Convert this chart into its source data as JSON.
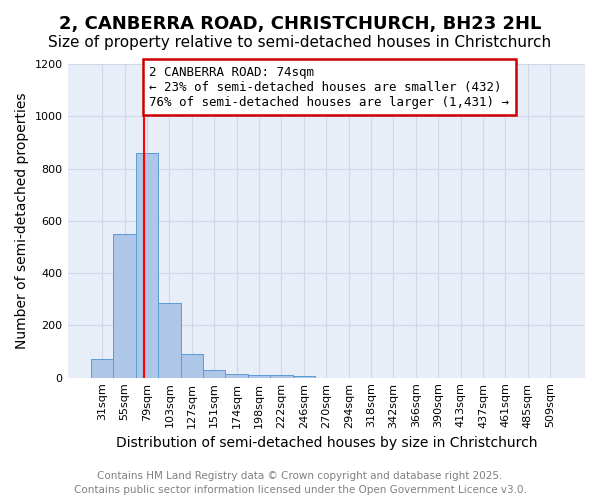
{
  "title": "2, CANBERRA ROAD, CHRISTCHURCH, BH23 2HL",
  "subtitle": "Size of property relative to semi-detached houses in Christchurch",
  "xlabel": "Distribution of semi-detached houses by size in Christchurch",
  "ylabel": "Number of semi-detached properties",
  "bin_labels": [
    "31sqm",
    "55sqm",
    "79sqm",
    "103sqm",
    "127sqm",
    "151sqm",
    "174sqm",
    "198sqm",
    "222sqm",
    "246sqm",
    "270sqm",
    "294sqm",
    "318sqm",
    "342sqm",
    "366sqm",
    "390sqm",
    "413sqm",
    "437sqm",
    "461sqm",
    "485sqm",
    "509sqm"
  ],
  "bar_values": [
    70,
    550,
    860,
    285,
    90,
    30,
    15,
    10,
    10,
    5,
    0,
    0,
    0,
    0,
    0,
    0,
    0,
    0,
    0,
    0,
    0
  ],
  "bar_color": "#aec6e8",
  "bar_edge_color": "#5b9bd5",
  "red_line_x": 1.85,
  "annotation_text": "2 CANBERRA ROAD: 74sqm\n← 23% of semi-detached houses are smaller (432)\n76% of semi-detached houses are larger (1,431) →",
  "annotation_box_color": "#ffffff",
  "annotation_box_edge": "#cc0000",
  "ylim": [
    0,
    1200
  ],
  "yticks": [
    0,
    200,
    400,
    600,
    800,
    1000,
    1200
  ],
  "grid_color": "#d0d8e8",
  "background_color": "#e8eef8",
  "footer_line1": "Contains HM Land Registry data © Crown copyright and database right 2025.",
  "footer_line2": "Contains public sector information licensed under the Open Government Licence v3.0.",
  "title_fontsize": 13,
  "subtitle_fontsize": 11,
  "axis_label_fontsize": 10,
  "tick_fontsize": 8,
  "annotation_fontsize": 9,
  "footer_fontsize": 7.5
}
